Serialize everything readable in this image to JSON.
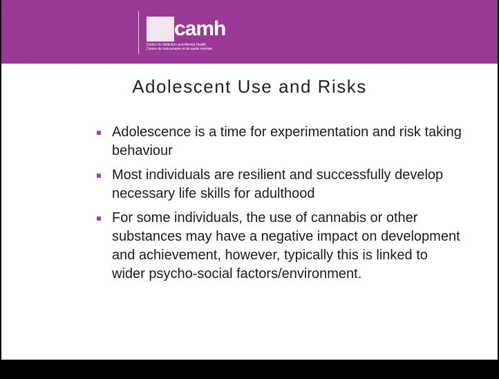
{
  "logo": {
    "name": "camh",
    "tagline": [
      "Centre for Addiction and Mental Health",
      "Centre de toxicomanie et de santé mentale"
    ]
  },
  "slide": {
    "title": "Adolescent Use and Risks",
    "bullets": [
      "Adolescence is a time for experimentation and risk taking behaviour",
      "Most individuals are resilient and successfully develop necessary life skills for adulthood",
      "For some individuals, the use of cannabis or other substances may have a negative impact on development and achievement, however, typically this is linked to wider psycho-social factors/environment."
    ]
  }
}
